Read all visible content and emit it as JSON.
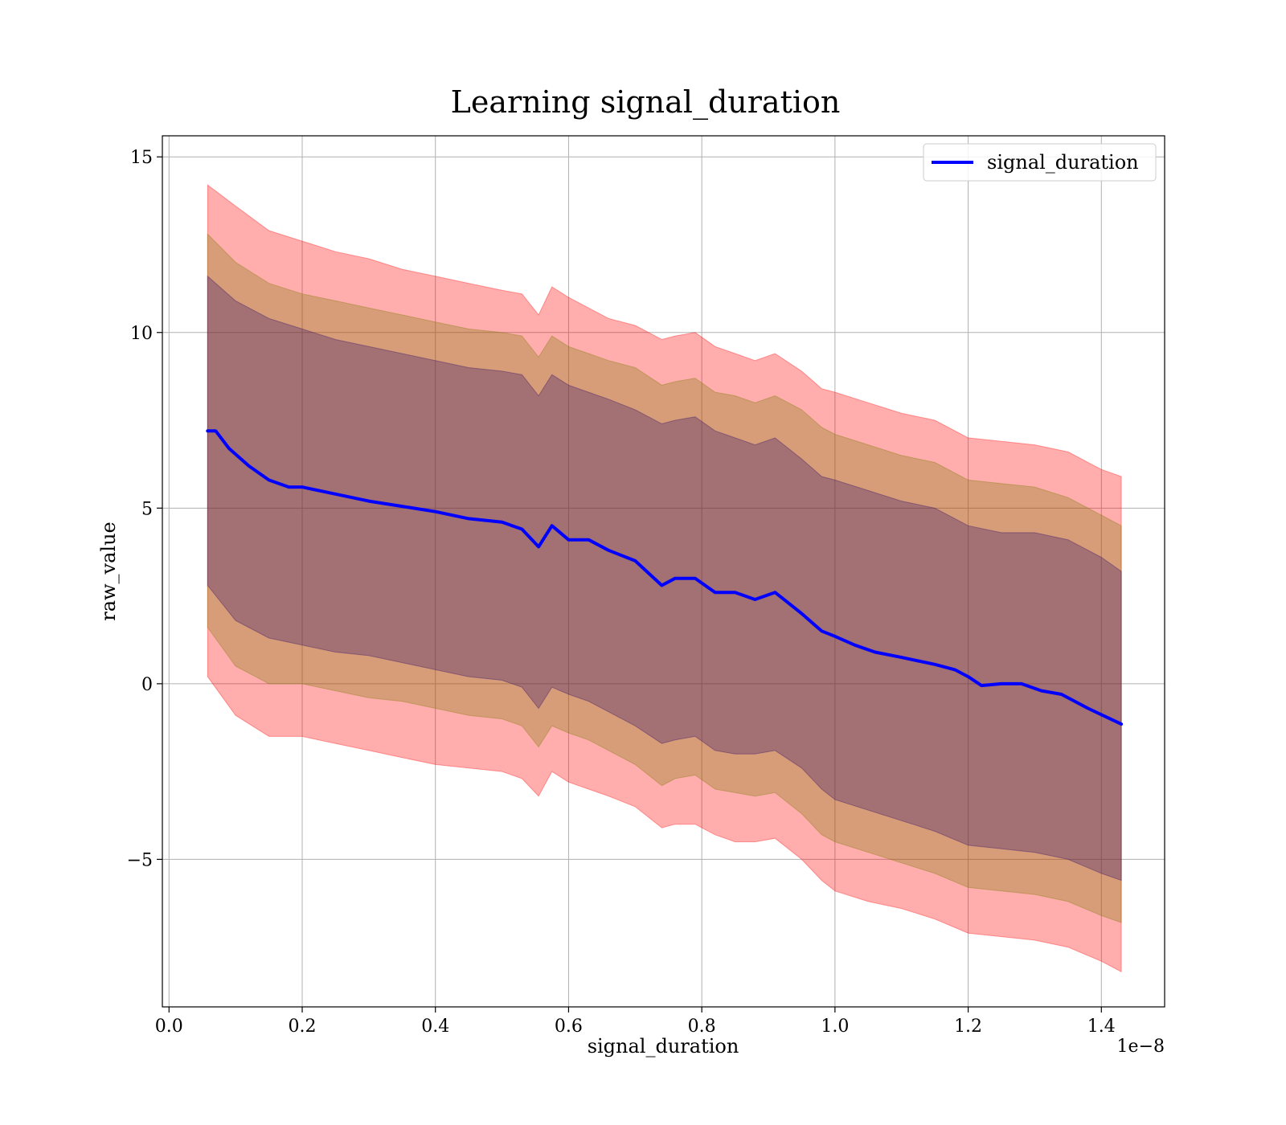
{
  "chart_data": {
    "type": "line",
    "title": "Learning signal_duration",
    "xlabel": "signal_duration",
    "ylabel": "raw_value",
    "x_multiplier_label": "1e−8",
    "xlim": [
      -0.01,
      1.495
    ],
    "ylim": [
      -9.2,
      15.6
    ],
    "grid": true,
    "legend_position": "top-right",
    "x_ticks": [
      0.0,
      0.2,
      0.4,
      0.6,
      0.8,
      1.0,
      1.2,
      1.4
    ],
    "x_tick_labels": [
      "0.0",
      "0.2",
      "0.4",
      "0.6",
      "0.8",
      "1.0",
      "1.2",
      "1.4"
    ],
    "y_ticks": [
      15,
      10,
      5,
      0,
      -5
    ],
    "y_tick_labels": [
      "15",
      "10",
      "5",
      "0",
      "−5"
    ],
    "series": [
      {
        "name": "signal_duration",
        "color": "#0000ff",
        "x": [
          0.058,
          0.07,
          0.09,
          0.12,
          0.15,
          0.18,
          0.2,
          0.25,
          0.3,
          0.35,
          0.4,
          0.45,
          0.5,
          0.53,
          0.555,
          0.575,
          0.6,
          0.63,
          0.66,
          0.7,
          0.74,
          0.76,
          0.79,
          0.82,
          0.85,
          0.88,
          0.91,
          0.95,
          0.98,
          1.0,
          1.03,
          1.06,
          1.1,
          1.15,
          1.18,
          1.2,
          1.22,
          1.25,
          1.28,
          1.31,
          1.34,
          1.38,
          1.43
        ],
        "values": [
          7.2,
          7.2,
          6.7,
          6.2,
          5.8,
          5.6,
          5.6,
          5.4,
          5.2,
          5.05,
          4.9,
          4.7,
          4.6,
          4.4,
          3.9,
          4.5,
          4.1,
          4.1,
          3.8,
          3.5,
          2.8,
          3.0,
          3.0,
          2.6,
          2.6,
          2.4,
          2.6,
          2.0,
          1.5,
          1.35,
          1.1,
          0.9,
          0.75,
          0.55,
          0.4,
          0.2,
          -0.05,
          0.0,
          0.0,
          -0.2,
          -0.3,
          -0.7,
          -1.15
        ]
      }
    ],
    "bands": [
      {
        "color": "#ff0000",
        "opacity": 0.32,
        "x": [
          0.058,
          0.1,
          0.15,
          0.2,
          0.25,
          0.3,
          0.35,
          0.4,
          0.45,
          0.5,
          0.53,
          0.555,
          0.575,
          0.6,
          0.63,
          0.66,
          0.7,
          0.74,
          0.76,
          0.79,
          0.82,
          0.85,
          0.88,
          0.91,
          0.95,
          0.98,
          1.0,
          1.05,
          1.1,
          1.15,
          1.2,
          1.25,
          1.3,
          1.35,
          1.4,
          1.43
        ],
        "upper": [
          14.2,
          13.6,
          12.9,
          12.6,
          12.3,
          12.1,
          11.8,
          11.6,
          11.4,
          11.2,
          11.1,
          10.5,
          11.3,
          11.0,
          10.7,
          10.4,
          10.2,
          9.8,
          9.9,
          10.0,
          9.6,
          9.4,
          9.2,
          9.4,
          8.9,
          8.4,
          8.3,
          8.0,
          7.7,
          7.5,
          7.0,
          6.9,
          6.8,
          6.6,
          6.1,
          5.9
        ],
        "lower": [
          0.2,
          -0.9,
          -1.5,
          -1.5,
          -1.7,
          -1.9,
          -2.1,
          -2.3,
          -2.4,
          -2.5,
          -2.7,
          -3.2,
          -2.5,
          -2.8,
          -3.0,
          -3.2,
          -3.5,
          -4.1,
          -4.0,
          -4.0,
          -4.3,
          -4.5,
          -4.5,
          -4.4,
          -5.0,
          -5.6,
          -5.9,
          -6.2,
          -6.4,
          -6.7,
          -7.1,
          -7.2,
          -7.3,
          -7.5,
          -7.9,
          -8.2
        ]
      },
      {
        "color": "#7a7a00",
        "opacity": 0.3,
        "x": [
          0.058,
          0.1,
          0.15,
          0.2,
          0.25,
          0.3,
          0.35,
          0.4,
          0.45,
          0.5,
          0.53,
          0.555,
          0.575,
          0.6,
          0.63,
          0.66,
          0.7,
          0.74,
          0.76,
          0.79,
          0.82,
          0.85,
          0.88,
          0.91,
          0.95,
          0.98,
          1.0,
          1.05,
          1.1,
          1.15,
          1.2,
          1.25,
          1.3,
          1.35,
          1.4,
          1.43
        ],
        "upper": [
          12.8,
          12.0,
          11.4,
          11.1,
          10.9,
          10.7,
          10.5,
          10.3,
          10.1,
          10.0,
          9.9,
          9.3,
          9.9,
          9.6,
          9.4,
          9.2,
          9.0,
          8.5,
          8.6,
          8.7,
          8.3,
          8.2,
          8.0,
          8.2,
          7.8,
          7.3,
          7.1,
          6.8,
          6.5,
          6.3,
          5.8,
          5.7,
          5.6,
          5.3,
          4.8,
          4.5
        ],
        "lower": [
          1.6,
          0.5,
          0.0,
          0.0,
          -0.2,
          -0.4,
          -0.5,
          -0.7,
          -0.9,
          -1.0,
          -1.2,
          -1.8,
          -1.2,
          -1.4,
          -1.6,
          -1.9,
          -2.3,
          -2.9,
          -2.7,
          -2.6,
          -3.0,
          -3.1,
          -3.2,
          -3.1,
          -3.7,
          -4.3,
          -4.5,
          -4.8,
          -5.1,
          -5.4,
          -5.8,
          -5.9,
          -6.0,
          -6.2,
          -6.6,
          -6.8
        ]
      },
      {
        "color": "#2a0a6a",
        "opacity": 0.3,
        "x": [
          0.058,
          0.1,
          0.15,
          0.2,
          0.25,
          0.3,
          0.35,
          0.4,
          0.45,
          0.5,
          0.53,
          0.555,
          0.575,
          0.6,
          0.63,
          0.66,
          0.7,
          0.74,
          0.76,
          0.79,
          0.82,
          0.85,
          0.88,
          0.91,
          0.95,
          0.98,
          1.0,
          1.05,
          1.1,
          1.15,
          1.2,
          1.25,
          1.3,
          1.35,
          1.4,
          1.43
        ],
        "upper": [
          11.6,
          10.9,
          10.4,
          10.1,
          9.8,
          9.6,
          9.4,
          9.2,
          9.0,
          8.9,
          8.8,
          8.2,
          8.8,
          8.5,
          8.3,
          8.1,
          7.8,
          7.4,
          7.5,
          7.6,
          7.2,
          7.0,
          6.8,
          7.0,
          6.4,
          5.9,
          5.8,
          5.5,
          5.2,
          5.0,
          4.5,
          4.3,
          4.3,
          4.1,
          3.6,
          3.2
        ],
        "lower": [
          2.8,
          1.8,
          1.3,
          1.1,
          0.9,
          0.8,
          0.6,
          0.4,
          0.2,
          0.1,
          -0.1,
          -0.7,
          -0.1,
          -0.3,
          -0.5,
          -0.8,
          -1.2,
          -1.7,
          -1.6,
          -1.5,
          -1.9,
          -2.0,
          -2.0,
          -1.9,
          -2.4,
          -3.0,
          -3.3,
          -3.6,
          -3.9,
          -4.2,
          -4.6,
          -4.7,
          -4.8,
          -5.0,
          -5.4,
          -5.6
        ]
      }
    ]
  }
}
